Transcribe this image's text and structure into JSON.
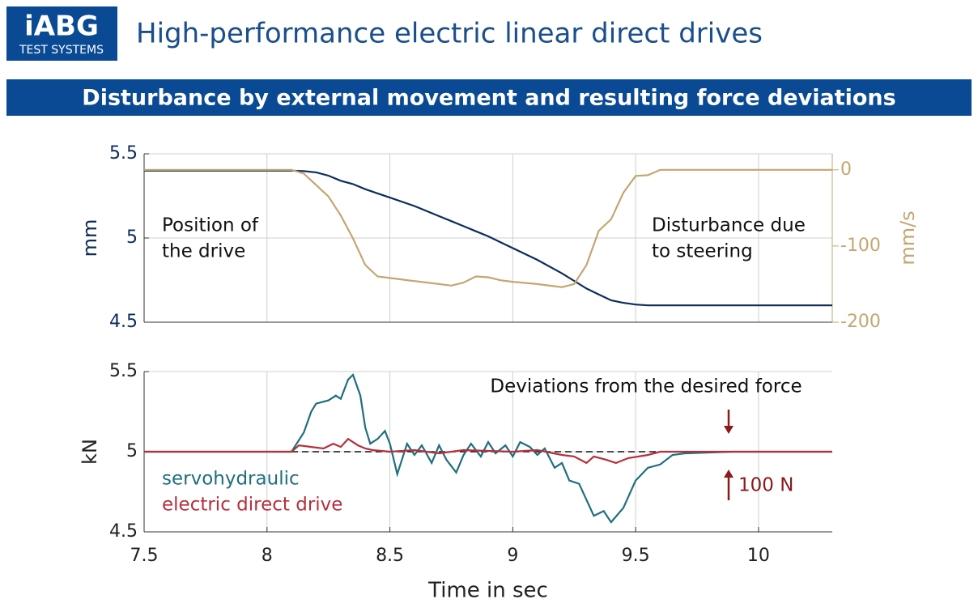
{
  "header": {
    "logo_top": "iABG",
    "logo_bottom": "TEST SYSTEMS",
    "title": "High-performance electric linear direct drives",
    "banner": "Disturbance by external movement and resulting force deviations"
  },
  "chart_data": [
    {
      "type": "line",
      "ylabel": "mm",
      "y2label": "mm/s",
      "xlim": [
        7.5,
        10.3
      ],
      "ylim": [
        4.5,
        5.5
      ],
      "yticks": [
        4.5,
        5,
        5.5
      ],
      "y2lim": [
        -200,
        21
      ],
      "y2ticks": [
        -200,
        -100,
        0
      ],
      "grid": true,
      "x": [
        7.5,
        8.0,
        8.1,
        8.15,
        8.2,
        8.25,
        8.3,
        8.35,
        8.4,
        8.45,
        8.5,
        8.6,
        8.7,
        8.75,
        8.8,
        8.85,
        8.9,
        8.95,
        9.0,
        9.1,
        9.2,
        9.25,
        9.3,
        9.35,
        9.4,
        9.45,
        9.5,
        9.55,
        9.6,
        10.3
      ],
      "series": [
        {
          "color": "#0d2d5c",
          "values": [
            5.4,
            5.4,
            5.4,
            5.397,
            5.39,
            5.37,
            5.34,
            5.32,
            5.29,
            5.265,
            5.24,
            5.19,
            5.13,
            5.1,
            5.07,
            5.04,
            5.01,
            4.975,
            4.94,
            4.87,
            4.79,
            4.745,
            4.7,
            4.665,
            4.63,
            4.615,
            4.605,
            4.6,
            4.6,
            4.6
          ]
        },
        {
          "color": "#c4a671",
          "axis": "y2",
          "values": [
            0,
            0,
            0,
            -5,
            -20,
            -35,
            -60,
            -90,
            -125,
            -140,
            -142,
            -146,
            -150,
            -152,
            -148,
            -140,
            -141,
            -145,
            -147,
            -150,
            -154,
            -150,
            -125,
            -80,
            -65,
            -30,
            -8,
            -7,
            0,
            0
          ]
        }
      ],
      "annotations": [
        [
          "Position of",
          "the drive"
        ],
        [
          "Disturbance due",
          "to steering"
        ]
      ]
    },
    {
      "type": "line",
      "ylabel": "kN",
      "xlabel": "Time in sec",
      "xlim": [
        7.5,
        10.3
      ],
      "xticks": [
        7.5,
        8,
        8.5,
        9,
        9.5,
        10
      ],
      "ylim": [
        4.5,
        5.5
      ],
      "yticks": [
        4.5,
        5,
        5.5
      ],
      "grid": true,
      "reference_line": 5,
      "series": [
        {
          "name": "servohydraulic",
          "color": "#1f6e7e",
          "x": [
            7.5,
            8.1,
            8.15,
            8.18,
            8.2,
            8.25,
            8.28,
            8.3,
            8.33,
            8.35,
            8.38,
            8.4,
            8.42,
            8.45,
            8.48,
            8.5,
            8.53,
            8.57,
            8.6,
            8.63,
            8.67,
            8.7,
            8.73,
            8.77,
            8.8,
            8.83,
            8.87,
            8.9,
            8.93,
            8.97,
            9.0,
            9.03,
            9.07,
            9.1,
            9.13,
            9.17,
            9.2,
            9.23,
            9.27,
            9.3,
            9.33,
            9.37,
            9.4,
            9.45,
            9.5,
            9.55,
            9.6,
            9.65,
            9.7,
            9.9,
            10.3
          ],
          "values": [
            5.0,
            5.0,
            5.12,
            5.25,
            5.3,
            5.32,
            5.35,
            5.33,
            5.45,
            5.48,
            5.35,
            5.15,
            5.05,
            5.08,
            5.13,
            5.05,
            4.86,
            5.05,
            4.98,
            5.04,
            4.93,
            5.04,
            4.95,
            4.87,
            4.98,
            5.05,
            4.97,
            5.06,
            4.99,
            5.04,
            4.97,
            5.06,
            5.03,
            4.98,
            5.02,
            4.9,
            4.93,
            4.82,
            4.8,
            4.7,
            4.6,
            4.63,
            4.56,
            4.65,
            4.82,
            4.9,
            4.92,
            4.98,
            4.99,
            5.0,
            5.0
          ]
        },
        {
          "name": "electric direct drive",
          "color": "#b5303c",
          "x": [
            7.5,
            8.1,
            8.13,
            8.18,
            8.23,
            8.27,
            8.3,
            8.33,
            8.37,
            8.4,
            8.43,
            8.5,
            8.6,
            8.7,
            8.8,
            9.0,
            9.1,
            9.2,
            9.25,
            9.3,
            9.33,
            9.38,
            9.42,
            9.47,
            9.55,
            9.6,
            10.3
          ],
          "values": [
            5.0,
            5.0,
            5.04,
            5.03,
            5.02,
            5.05,
            5.03,
            5.08,
            5.04,
            5.02,
            5.01,
            5.0,
            5.01,
            4.99,
            5.01,
            5.0,
            5.01,
            4.98,
            4.97,
            4.93,
            4.97,
            4.95,
            4.93,
            4.96,
            4.98,
            5.0,
            5.0
          ]
        }
      ],
      "annotations": [
        "Deviations from the desired force",
        "100 N"
      ]
    }
  ]
}
